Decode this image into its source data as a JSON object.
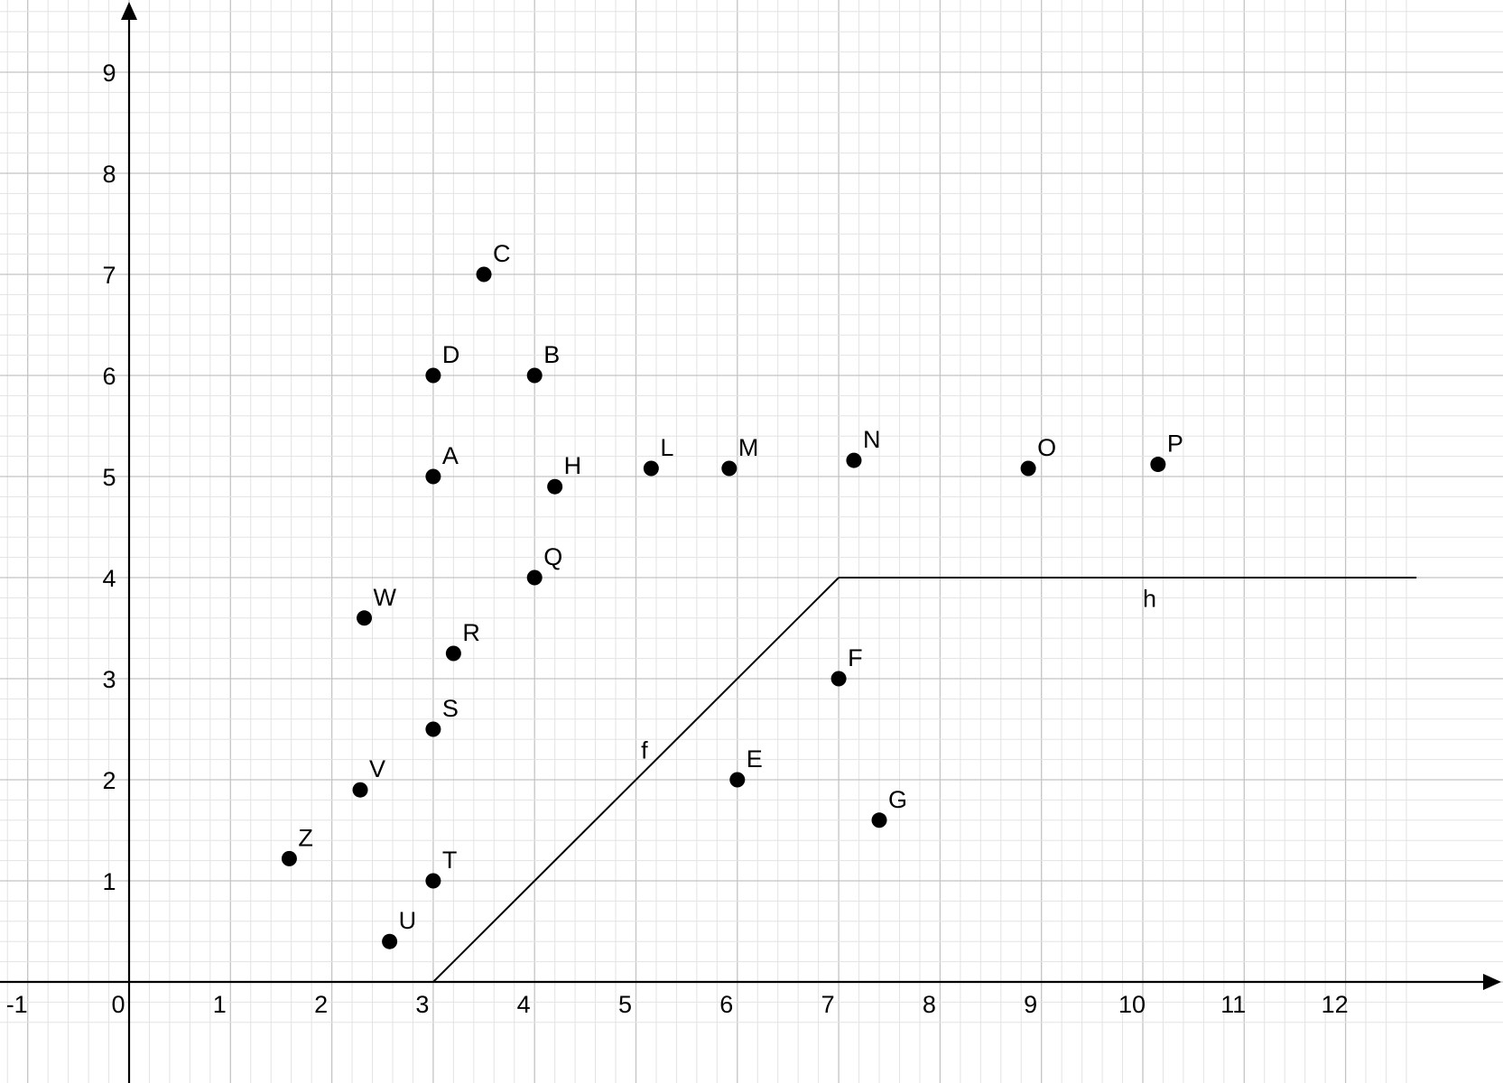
{
  "chart_data": {
    "type": "scatter",
    "title": "",
    "xlabel": "",
    "ylabel": "",
    "xlim": [
      -1.3,
      12.7
    ],
    "ylim": [
      -0.4,
      9.8
    ],
    "grid": true,
    "minor_grid_step": 0.2,
    "x_ticks": [
      "-1",
      "0",
      "1",
      "2",
      "3",
      "4",
      "5",
      "6",
      "7",
      "8",
      "9",
      "10",
      "11",
      "12"
    ],
    "y_ticks": [
      "1",
      "2",
      "3",
      "4",
      "5",
      "6",
      "7",
      "8",
      "9"
    ],
    "points": [
      {
        "name": "A",
        "x": 3.0,
        "y": 5.0
      },
      {
        "name": "B",
        "x": 4.0,
        "y": 6.0
      },
      {
        "name": "C",
        "x": 3.5,
        "y": 7.0
      },
      {
        "name": "D",
        "x": 3.0,
        "y": 6.0
      },
      {
        "name": "E",
        "x": 6.0,
        "y": 2.0
      },
      {
        "name": "F",
        "x": 7.0,
        "y": 3.0
      },
      {
        "name": "G",
        "x": 7.4,
        "y": 1.6
      },
      {
        "name": "H",
        "x": 4.2,
        "y": 4.9
      },
      {
        "name": "L",
        "x": 5.15,
        "y": 5.08
      },
      {
        "name": "M",
        "x": 5.92,
        "y": 5.08
      },
      {
        "name": "N",
        "x": 7.15,
        "y": 5.16
      },
      {
        "name": "O",
        "x": 8.87,
        "y": 5.08
      },
      {
        "name": "P",
        "x": 10.15,
        "y": 5.12
      },
      {
        "name": "Q",
        "x": 4.0,
        "y": 4.0
      },
      {
        "name": "R",
        "x": 3.2,
        "y": 3.25
      },
      {
        "name": "S",
        "x": 3.0,
        "y": 2.5
      },
      {
        "name": "T",
        "x": 3.0,
        "y": 1.0
      },
      {
        "name": "U",
        "x": 2.57,
        "y": 0.4
      },
      {
        "name": "V",
        "x": 2.28,
        "y": 1.9
      },
      {
        "name": "W",
        "x": 2.32,
        "y": 3.6
      },
      {
        "name": "Z",
        "x": 1.58,
        "y": 1.22
      }
    ],
    "lines": [
      {
        "name": "f",
        "points": [
          [
            3,
            0
          ],
          [
            7,
            4
          ]
        ],
        "label_at": [
          5.05,
          2.3
        ]
      },
      {
        "name": "h",
        "points": [
          [
            7,
            4
          ],
          [
            12.7,
            4
          ]
        ],
        "label_at": [
          10.0,
          3.8
        ]
      }
    ]
  }
}
